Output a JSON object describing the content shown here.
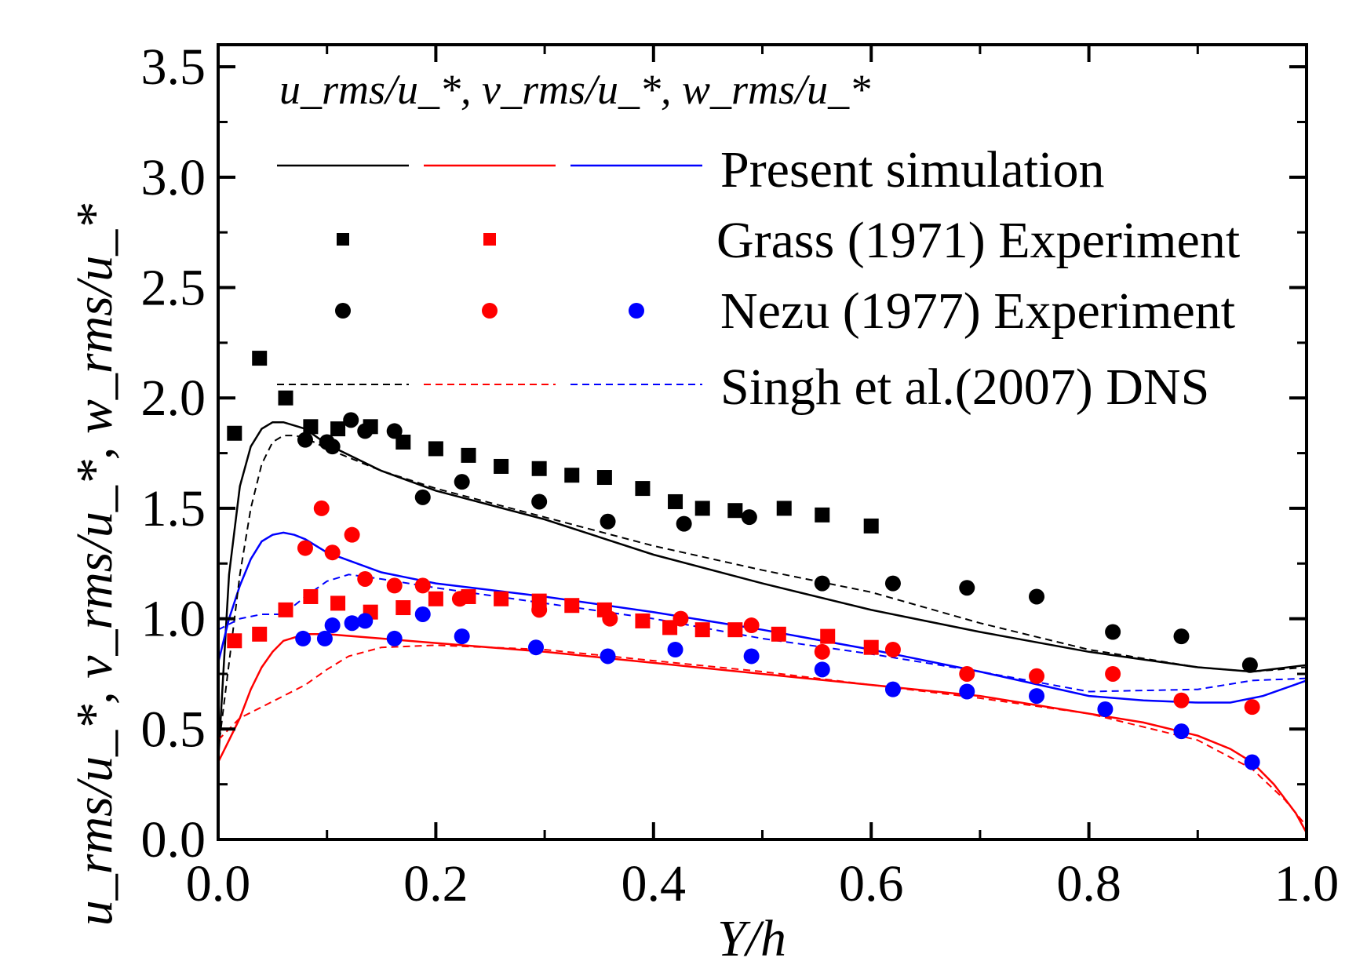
{
  "chart_data": {
    "type": "line",
    "title": "",
    "xlabel": "Y/h",
    "ylabel": "u_rms/u_*, v_rms/u_*, w_rms/u_*",
    "xlim": [
      0,
      1.0
    ],
    "ylim": [
      0,
      3.6
    ],
    "x_ticks": [
      "0.0",
      "0.2",
      "0.4",
      "0.6",
      "0.8",
      "1.0"
    ],
    "y_ticks": [
      "0.0",
      "0.5",
      "1.0",
      "1.5",
      "2.0",
      "2.5",
      "3.0",
      "3.5"
    ],
    "legend_title": "u_rms/u_*, v_rms/u_*, w_rms/u_*",
    "legend_entries": [
      "Present simulation",
      "Grass (1971) Experiment",
      "Nezu (1977) Experiment",
      "Singh et al.(2007) DNS"
    ],
    "colors": {
      "u": "#000000",
      "v": "#ff0000",
      "w": "#0000ff"
    },
    "series": [
      {
        "name": "Present simulation u",
        "group": "Present simulation",
        "component": "u",
        "style": "solid",
        "x": [
          0.0,
          0.01,
          0.02,
          0.03,
          0.04,
          0.05,
          0.06,
          0.08,
          0.1,
          0.15,
          0.2,
          0.3,
          0.4,
          0.5,
          0.6,
          0.7,
          0.8,
          0.9,
          0.95,
          1.0
        ],
        "y": [
          0.35,
          1.2,
          1.6,
          1.78,
          1.86,
          1.89,
          1.89,
          1.86,
          1.79,
          1.67,
          1.58,
          1.45,
          1.29,
          1.16,
          1.04,
          0.94,
          0.85,
          0.78,
          0.76,
          0.79
        ]
      },
      {
        "name": "Present simulation v",
        "group": "Present simulation",
        "component": "v",
        "style": "solid",
        "x": [
          0.0,
          0.01,
          0.02,
          0.03,
          0.04,
          0.05,
          0.06,
          0.08,
          0.1,
          0.15,
          0.2,
          0.3,
          0.4,
          0.5,
          0.6,
          0.7,
          0.8,
          0.85,
          0.9,
          0.93,
          0.95,
          0.97,
          0.99,
          1.0
        ],
        "y": [
          0.35,
          0.45,
          0.55,
          0.68,
          0.78,
          0.85,
          0.9,
          0.93,
          0.93,
          0.91,
          0.89,
          0.85,
          0.8,
          0.75,
          0.7,
          0.65,
          0.57,
          0.53,
          0.47,
          0.41,
          0.35,
          0.25,
          0.12,
          0.03
        ]
      },
      {
        "name": "Present simulation w",
        "group": "Present simulation",
        "component": "w",
        "style": "solid",
        "x": [
          0.0,
          0.01,
          0.02,
          0.03,
          0.04,
          0.05,
          0.06,
          0.07,
          0.08,
          0.1,
          0.15,
          0.2,
          0.3,
          0.4,
          0.5,
          0.6,
          0.7,
          0.8,
          0.85,
          0.9,
          0.93,
          0.96,
          1.0
        ],
        "y": [
          0.8,
          1.0,
          1.15,
          1.27,
          1.35,
          1.38,
          1.39,
          1.38,
          1.36,
          1.3,
          1.21,
          1.16,
          1.1,
          1.03,
          0.95,
          0.86,
          0.76,
          0.65,
          0.63,
          0.62,
          0.62,
          0.65,
          0.72
        ]
      },
      {
        "name": "Singh et al.(2007) DNS u",
        "group": "Singh et al.(2007) DNS",
        "component": "u",
        "style": "dashed",
        "x": [
          0.0,
          0.01,
          0.02,
          0.03,
          0.04,
          0.05,
          0.06,
          0.07,
          0.08,
          0.1,
          0.15,
          0.2,
          0.3,
          0.4,
          0.5,
          0.6,
          0.7,
          0.8,
          0.9,
          0.95,
          1.0
        ],
        "y": [
          0.4,
          0.8,
          1.2,
          1.5,
          1.7,
          1.8,
          1.83,
          1.83,
          1.82,
          1.77,
          1.67,
          1.59,
          1.46,
          1.33,
          1.22,
          1.12,
          0.98,
          0.86,
          0.78,
          0.76,
          0.78
        ]
      },
      {
        "name": "Singh et al.(2007) DNS v",
        "group": "Singh et al.(2007) DNS",
        "component": "v",
        "style": "dashed",
        "x": [
          0.0,
          0.02,
          0.04,
          0.06,
          0.08,
          0.1,
          0.12,
          0.15,
          0.2,
          0.3,
          0.4,
          0.5,
          0.6,
          0.7,
          0.8,
          0.9,
          0.95,
          0.98,
          1.0
        ],
        "y": [
          0.45,
          0.55,
          0.6,
          0.65,
          0.7,
          0.77,
          0.83,
          0.87,
          0.88,
          0.86,
          0.81,
          0.76,
          0.7,
          0.64,
          0.57,
          0.45,
          0.32,
          0.18,
          0.06
        ]
      },
      {
        "name": "Singh et al.(2007) DNS w",
        "group": "Singh et al.(2007) DNS",
        "component": "w",
        "style": "dashed",
        "x": [
          0.0,
          0.02,
          0.04,
          0.06,
          0.08,
          0.1,
          0.12,
          0.15,
          0.2,
          0.3,
          0.4,
          0.5,
          0.6,
          0.7,
          0.8,
          0.9,
          0.95,
          1.0
        ],
        "y": [
          0.95,
          1.0,
          1.02,
          1.02,
          1.1,
          1.17,
          1.2,
          1.18,
          1.14,
          1.07,
          1.0,
          0.91,
          0.84,
          0.76,
          0.67,
          0.68,
          0.72,
          0.73
        ]
      },
      {
        "name": "Grass (1971) Experiment u",
        "group": "Grass (1971) Experiment",
        "component": "u",
        "marker": "square",
        "x": [
          0.015,
          0.038,
          0.062,
          0.085,
          0.11,
          0.14,
          0.17,
          0.2,
          0.23,
          0.26,
          0.295,
          0.325,
          0.355,
          0.39,
          0.42,
          0.445,
          0.475,
          0.52,
          0.555,
          0.6
        ],
        "y": [
          1.84,
          2.18,
          2.0,
          1.87,
          1.86,
          1.87,
          1.8,
          1.77,
          1.74,
          1.69,
          1.68,
          1.65,
          1.64,
          1.59,
          1.53,
          1.5,
          1.49,
          1.5,
          1.47,
          1.42
        ]
      },
      {
        "name": "Grass (1971) Experiment v",
        "group": "Grass (1971) Experiment",
        "component": "v",
        "marker": "square",
        "x": [
          0.015,
          0.038,
          0.062,
          0.085,
          0.11,
          0.14,
          0.17,
          0.2,
          0.23,
          0.26,
          0.295,
          0.325,
          0.355,
          0.39,
          0.415,
          0.445,
          0.475,
          0.515,
          0.56,
          0.6
        ],
        "y": [
          0.9,
          0.93,
          1.04,
          1.1,
          1.07,
          1.03,
          1.05,
          1.09,
          1.1,
          1.09,
          1.08,
          1.06,
          1.04,
          0.99,
          0.96,
          0.95,
          0.95,
          0.93,
          0.92,
          0.87
        ]
      },
      {
        "name": "Nezu (1977) Experiment u",
        "group": "Nezu (1977) Experiment",
        "component": "u",
        "marker": "circle",
        "x": [
          0.08,
          0.1,
          0.105,
          0.122,
          0.135,
          0.162,
          0.188,
          0.224,
          0.295,
          0.358,
          0.428,
          0.488,
          0.555,
          0.62,
          0.688,
          0.752,
          0.822,
          0.885,
          0.948
        ],
        "y": [
          1.81,
          1.8,
          1.78,
          1.9,
          1.85,
          1.85,
          1.55,
          1.62,
          1.53,
          1.44,
          1.43,
          1.46,
          1.16,
          1.16,
          1.14,
          1.1,
          0.94,
          0.92,
          0.79
        ]
      },
      {
        "name": "Nezu (1977) Experiment v",
        "group": "Nezu (1977) Experiment",
        "component": "v",
        "marker": "circle",
        "x": [
          0.08,
          0.095,
          0.105,
          0.123,
          0.135,
          0.162,
          0.188,
          0.222,
          0.295,
          0.36,
          0.425,
          0.49,
          0.555,
          0.62,
          0.688,
          0.752,
          0.822,
          0.885,
          0.95
        ],
        "y": [
          1.32,
          1.5,
          1.3,
          1.38,
          1.18,
          1.15,
          1.15,
          1.09,
          1.04,
          1.0,
          1.0,
          0.97,
          0.85,
          0.86,
          0.75,
          0.74,
          0.75,
          0.63,
          0.6
        ]
      },
      {
        "name": "Nezu (1977) Experiment w",
        "group": "Nezu (1977) Experiment",
        "component": "w",
        "marker": "circle",
        "x": [
          0.078,
          0.098,
          0.105,
          0.123,
          0.135,
          0.162,
          0.188,
          0.224,
          0.292,
          0.358,
          0.42,
          0.49,
          0.555,
          0.62,
          0.688,
          0.752,
          0.815,
          0.885,
          0.95
        ],
        "y": [
          0.91,
          0.91,
          0.97,
          0.98,
          0.99,
          0.91,
          1.02,
          0.92,
          0.87,
          0.83,
          0.86,
          0.83,
          0.77,
          0.68,
          0.67,
          0.65,
          0.59,
          0.49,
          0.35
        ]
      }
    ]
  }
}
